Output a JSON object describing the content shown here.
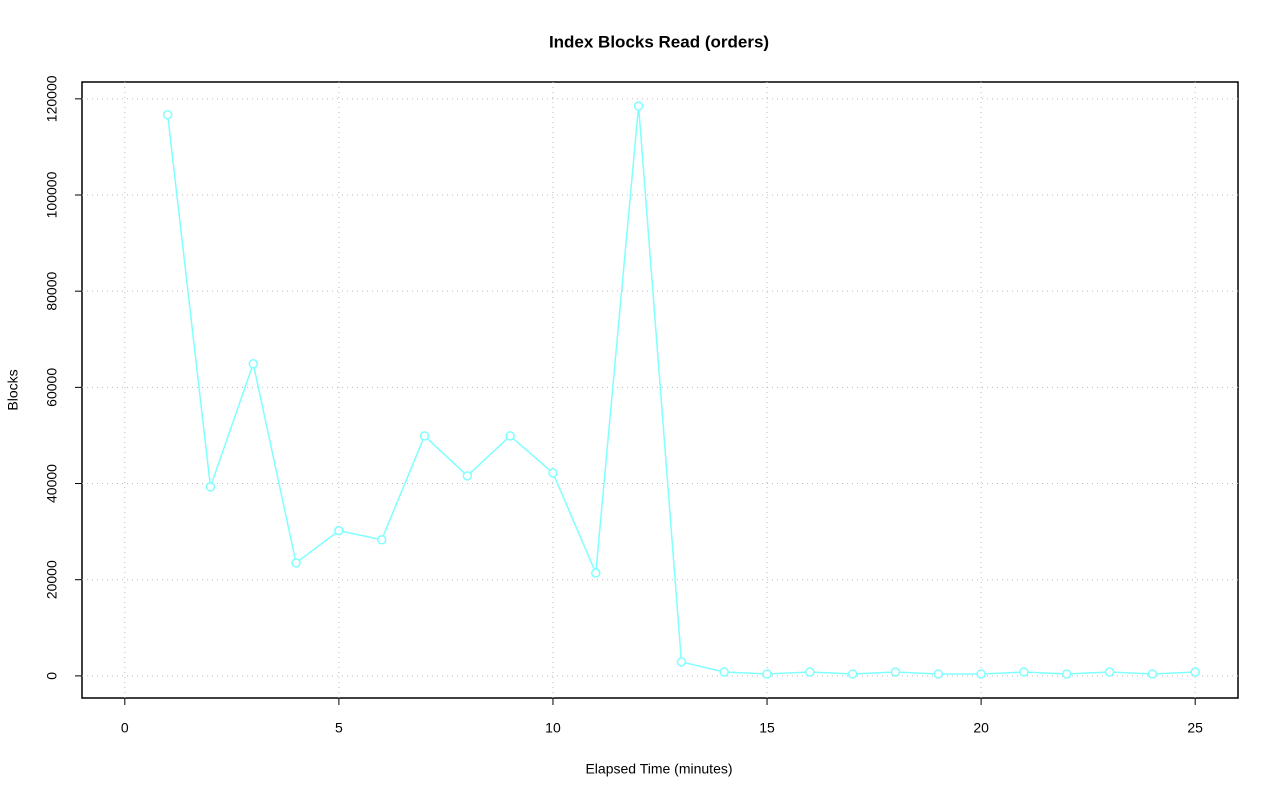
{
  "chart_data": {
    "type": "line",
    "title": "Index Blocks Read (orders)",
    "x_label": "Elapsed Time (minutes)",
    "y_label": "Blocks",
    "x": [
      1,
      2,
      3,
      4,
      5,
      6,
      7,
      8,
      9,
      10,
      11,
      12,
      13,
      14,
      15,
      16,
      17,
      18,
      19,
      20,
      21,
      22,
      23,
      24,
      25
    ],
    "series": [
      {
        "name": "orders",
        "color": "#80ffff",
        "values": [
          116700,
          39300,
          64900,
          23500,
          30200,
          28300,
          49900,
          41600,
          49900,
          42200,
          21400,
          118500,
          2900,
          800,
          400,
          800,
          400,
          800,
          400,
          400,
          800,
          400,
          800,
          400,
          800
        ]
      }
    ],
    "xlim": [
      -1,
      26
    ],
    "xticks": [
      0,
      5,
      10,
      15,
      20,
      25
    ],
    "ylim": [
      -4600,
      123500
    ],
    "yticks": [
      0,
      20000,
      40000,
      60000,
      80000,
      100000,
      120000
    ],
    "grid": true
  }
}
